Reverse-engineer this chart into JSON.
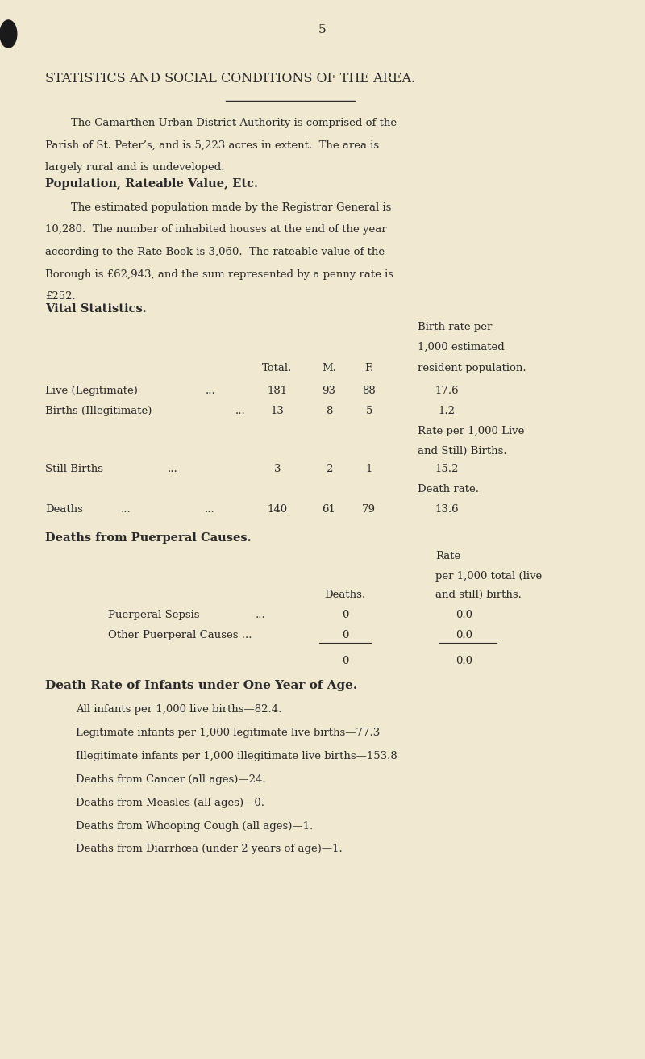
{
  "bg_color": "#f0e8d0",
  "text_color": "#2a2a2a",
  "page_number": "5",
  "title": "STATISTICS AND SOCIAL CONDITIONS OF THE AREA.",
  "intro_line1": "The Camarthen Urban District Authority is comprised of the",
  "intro_line2": "Parish of St. Peter’s, and is 5,223 acres in extent.  The area is",
  "intro_line3": "largely rural and is undeveloped.",
  "section1_heading": "Population, Rateable Value, Etc.",
  "s1_line1": "The estimated population made by the Registrar General is",
  "s1_line2": "10,280.  The number of inhabited houses at the end of the year",
  "s1_line3": "according to the Rate Book is 3,060.  The rateable value of the",
  "s1_line4": "Borough is £62,943, and the sum represented by a penny rate is",
  "s1_line5": "£252.",
  "section2_heading": "Vital Statistics.",
  "birth_rate_hdr1": "Birth rate per",
  "birth_rate_hdr2": "1,000 estimated",
  "col_total": "Total.",
  "col_m": "M.",
  "col_f": "F.",
  "col_res_pop": "resident population.",
  "live_leg_label": "Live (Legitimate)",
  "live_leg_dots": "...",
  "live_leg_total": "181",
  "live_leg_m": "93",
  "live_leg_f": "88",
  "live_leg_rate": "17.6",
  "births_illeg_label": "Births (Illegitimate)",
  "births_illeg_dots": "...",
  "births_illeg_total": "13",
  "births_illeg_m": "8",
  "births_illeg_f": "5",
  "births_illeg_rate": "1.2",
  "rate_per_1000_live1": "Rate per 1,000 Live",
  "rate_per_1000_live2": "and Still) Births.",
  "still_births_label": "Still Births",
  "still_births_dots": "...",
  "still_births_total": "3",
  "still_births_m": "2",
  "still_births_f": "1",
  "still_births_rate": "15.2",
  "death_rate_note": "Death rate.",
  "deaths_label": "Deaths",
  "deaths_dots1": "...",
  "deaths_dots2": "...",
  "deaths_total": "140",
  "deaths_m": "61",
  "deaths_f": "79",
  "deaths_rate": "13.6",
  "section3_heading": "Deaths from Puerperal Causes.",
  "puerperal_rate_hdr1": "Rate",
  "puerperal_rate_hdr2": "per 1,000 total (live",
  "puerperal_col_deaths": "Deaths.",
  "puerperal_col_rate": "and still) births.",
  "puerperal_sepsis_label": "Puerperal Sepsis",
  "puerperal_sepsis_dots": "...",
  "puerperal_sepsis_deaths": "0",
  "puerperal_sepsis_rate": "0.0",
  "other_puerperal_label": "Other Puerperal Causes ...",
  "other_puerperal_deaths": "0",
  "other_puerperal_rate": "0.0",
  "puerperal_total_deaths": "0",
  "puerperal_total_rate": "0.0",
  "section4_heading": "Death Rate of Infants under One Year of Age.",
  "infant_line1": "All infants per 1,000 live births—82.4.",
  "infant_line2": "Legitimate infants per 1,000 legitimate live births—77.3",
  "infant_line3": "Illegitimate infants per 1,000 illegitimate live births—153.8",
  "infant_line4": "Deaths from Cancer (all ages)—24.",
  "infant_line5": "Deaths from Measles (all ages)—0.",
  "infant_line6": "Deaths from Whooping Cough (all ages)—1.",
  "infant_line7": "Deaths from Diarrhœa (under 2 years of age)—1."
}
